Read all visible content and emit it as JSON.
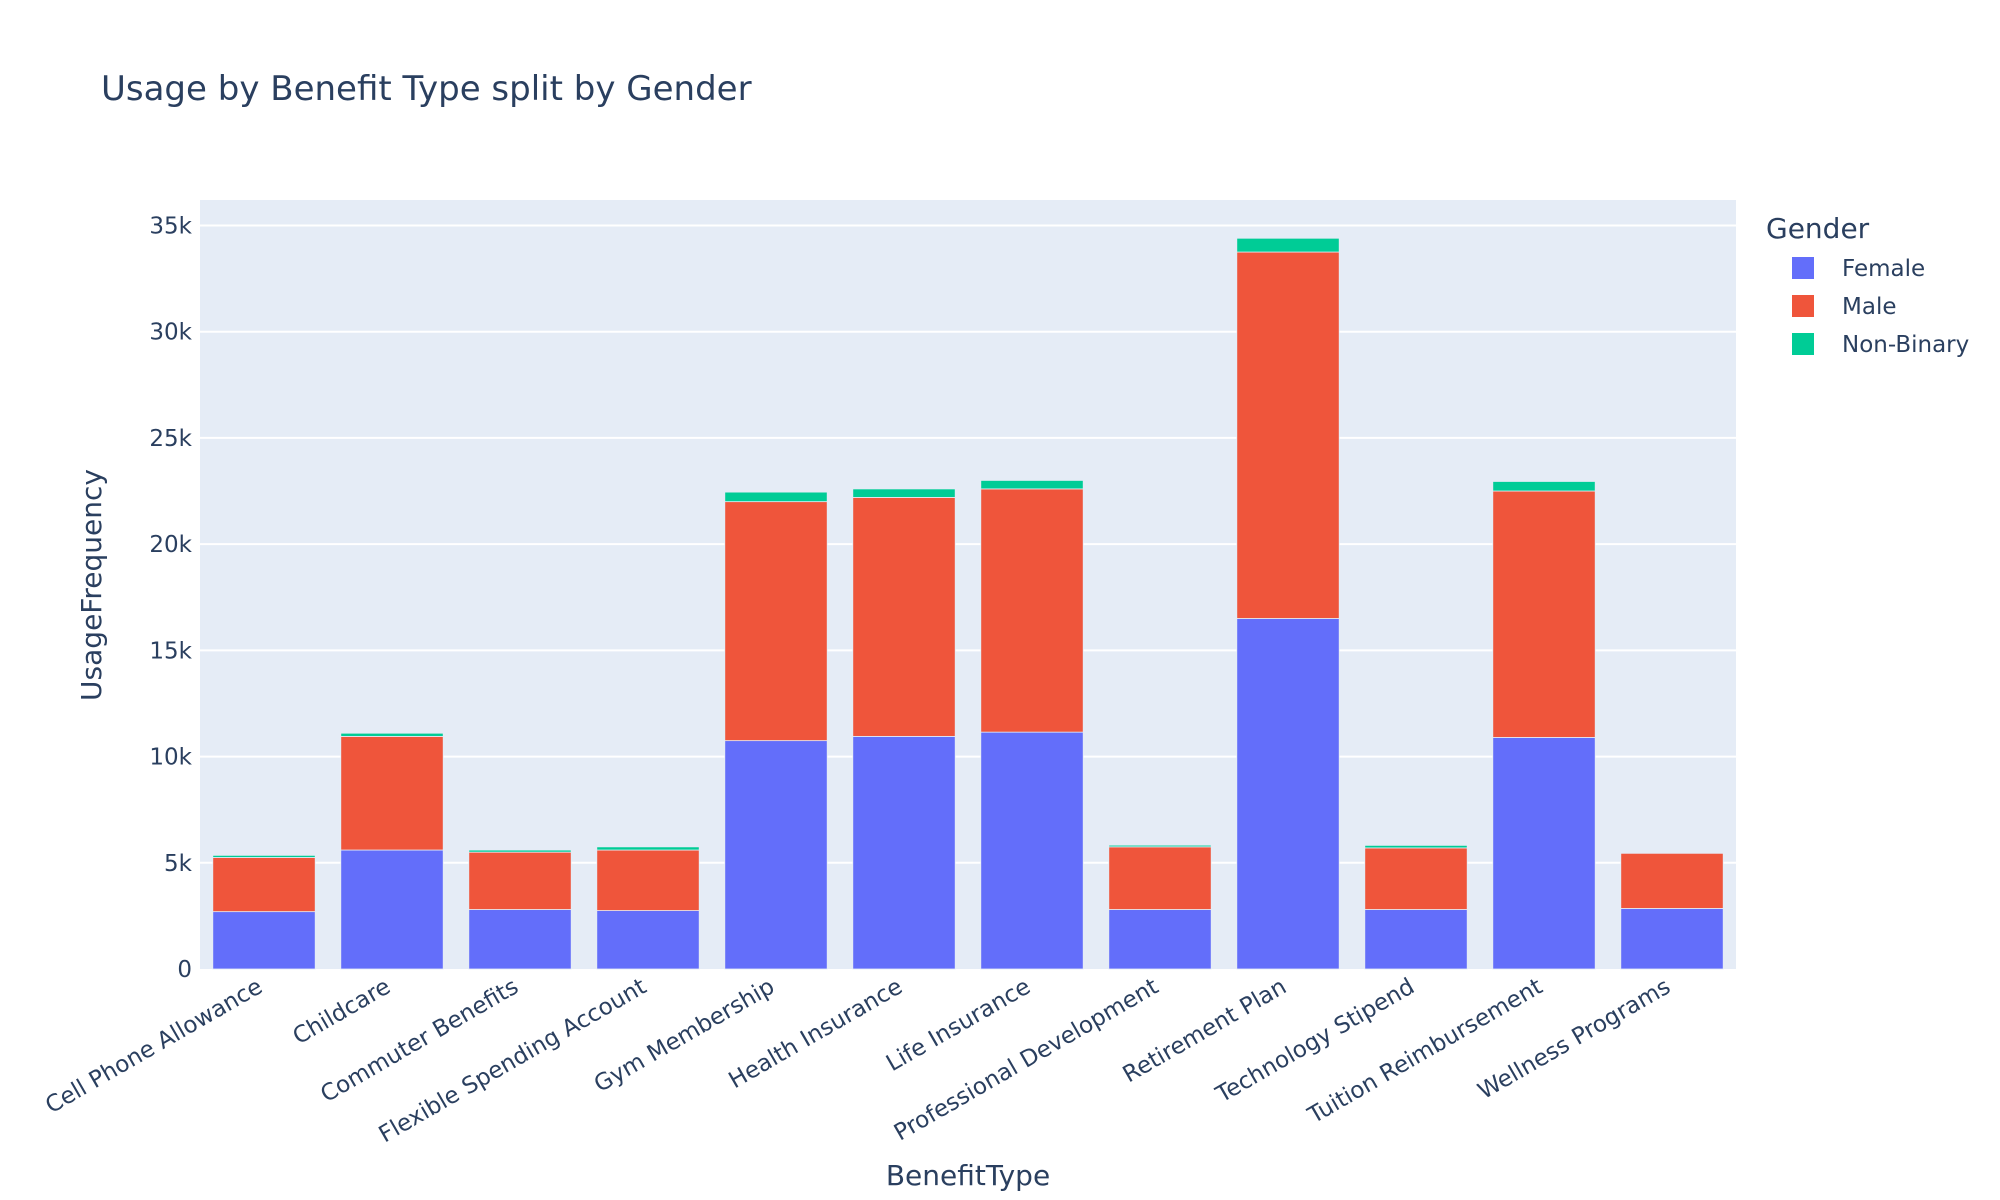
{
  "chart_data": {
    "type": "bar",
    "barmode": "stack",
    "title": "Usage by Benefit Type split by Gender",
    "xlabel": "BenefitType",
    "ylabel": "UsageFrequency",
    "ylim": [
      0,
      36200
    ],
    "yticks": [
      0,
      5000,
      10000,
      15000,
      20000,
      25000,
      30000,
      35000
    ],
    "ytick_labels": [
      "0",
      "5k",
      "10k",
      "15k",
      "20k",
      "25k",
      "30k",
      "35k"
    ],
    "grid": true,
    "legend": {
      "title": "Gender",
      "placement": "right"
    },
    "categories": [
      "Cell Phone Allowance",
      "Childcare",
      "Commuter Benefits",
      "Flexible Spending Account",
      "Gym Membership",
      "Health Insurance",
      "Life Insurance",
      "Professional Development",
      "Retirement Plan",
      "Technology Stipend",
      "Tuition Reimbursement",
      "Wellness Programs"
    ],
    "series": [
      {
        "name": "Female",
        "color": "#636efa",
        "values": [
          2700,
          5600,
          2800,
          2750,
          10750,
          10950,
          11150,
          2800,
          16500,
          2800,
          10900,
          2850
        ]
      },
      {
        "name": "Male",
        "color": "#ef553b",
        "values": [
          2550,
          5350,
          2700,
          2850,
          11250,
          11250,
          11450,
          2950,
          17250,
          2900,
          11600,
          2600
        ]
      },
      {
        "name": "Non-Binary",
        "color": "#00cc96",
        "values": [
          100,
          150,
          100,
          150,
          450,
          400,
          400,
          80,
          650,
          120,
          450,
          30
        ]
      }
    ]
  }
}
